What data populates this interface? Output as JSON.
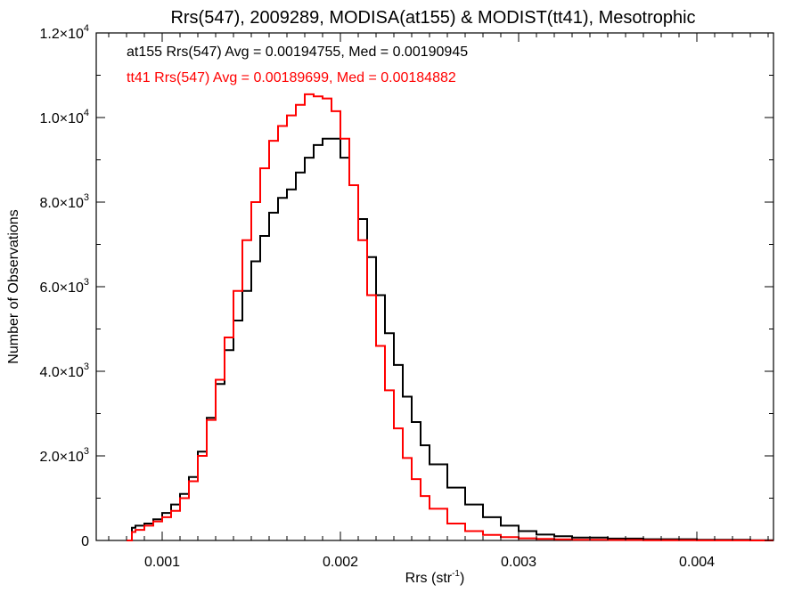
{
  "chart_data": {
    "type": "line",
    "step": true,
    "title": "Rrs(547), 2009289, MODISA(at155) & MODIST(tt41), Mesotrophic",
    "xlabel_base": "Rrs (str",
    "xlabel_sup": "-1",
    "xlabel_close": ")",
    "ylabel": "Number of Observations",
    "xlim": [
      0.00063,
      0.00443
    ],
    "ylim": [
      0,
      12000
    ],
    "grid": false,
    "x_ticks": [
      {
        "value": 0.001,
        "label": "0.001"
      },
      {
        "value": 0.002,
        "label": "0.002"
      },
      {
        "value": 0.003,
        "label": "0.003"
      },
      {
        "value": 0.004,
        "label": "0.004"
      }
    ],
    "y_ticks": [
      {
        "value": 0,
        "mant": "0",
        "exp": ""
      },
      {
        "value": 2000,
        "mant": "2.0×10",
        "exp": "3"
      },
      {
        "value": 4000,
        "mant": "4.0×10",
        "exp": "3"
      },
      {
        "value": 6000,
        "mant": "6.0×10",
        "exp": "3"
      },
      {
        "value": 8000,
        "mant": "8.0×10",
        "exp": "3"
      },
      {
        "value": 10000,
        "mant": "1.0×10",
        "exp": "4"
      },
      {
        "value": 12000,
        "mant": "1.2×10",
        "exp": "4"
      }
    ],
    "annotations": [
      {
        "text": "at155 Rrs(547) Avg = 0.00194755, Med = 0.00190945",
        "color": "#000000"
      },
      {
        "text": "tt41 Rrs(547) Avg = 0.00189699, Med = 0.00184882",
        "color": "#ff0000"
      }
    ],
    "series": [
      {
        "color": "#000000",
        "x": [
          0.0008,
          0.00083,
          0.00085,
          0.0009,
          0.00095,
          0.001,
          0.00105,
          0.0011,
          0.00115,
          0.0012,
          0.00125,
          0.0013,
          0.00135,
          0.0014,
          0.00145,
          0.0015,
          0.00155,
          0.0016,
          0.00165,
          0.0017,
          0.00175,
          0.0018,
          0.00185,
          0.0019,
          0.00195,
          0.002,
          0.00205,
          0.0021,
          0.00215,
          0.0022,
          0.00225,
          0.0023,
          0.00235,
          0.0024,
          0.00245,
          0.0025,
          0.0026,
          0.0027,
          0.0028,
          0.0029,
          0.003,
          0.0031,
          0.0032,
          0.0033,
          0.0035,
          0.0037,
          0.004,
          0.0043
        ],
        "y": [
          0,
          300,
          350,
          400,
          500,
          650,
          850,
          1100,
          1500,
          2100,
          2900,
          3700,
          4500,
          5200,
          5900,
          6600,
          7200,
          7750,
          8100,
          8300,
          8700,
          9050,
          9350,
          9500,
          9500,
          9050,
          8400,
          7600,
          6700,
          5800,
          4900,
          4150,
          3400,
          2800,
          2250,
          1800,
          1250,
          850,
          550,
          350,
          220,
          140,
          100,
          70,
          45,
          30,
          15,
          5
        ]
      },
      {
        "color": "#ff0000",
        "x": [
          0.0008,
          0.00083,
          0.00085,
          0.0009,
          0.00095,
          0.001,
          0.00105,
          0.0011,
          0.00115,
          0.0012,
          0.00125,
          0.0013,
          0.00135,
          0.0014,
          0.00145,
          0.0015,
          0.00155,
          0.0016,
          0.00165,
          0.0017,
          0.00175,
          0.0018,
          0.00185,
          0.0019,
          0.00195,
          0.002,
          0.00205,
          0.0021,
          0.00215,
          0.0022,
          0.00225,
          0.0023,
          0.00235,
          0.0024,
          0.00245,
          0.0025,
          0.0026,
          0.0027,
          0.0028,
          0.0029,
          0.003,
          0.0031,
          0.0032,
          0.0033,
          0.0035,
          0.0037,
          0.004,
          0.0043
        ],
        "y": [
          0,
          200,
          250,
          350,
          450,
          550,
          700,
          1000,
          1400,
          2000,
          2850,
          3800,
          4800,
          5900,
          7100,
          8000,
          8800,
          9450,
          9800,
          10050,
          10300,
          10550,
          10500,
          10450,
          10150,
          9500,
          8400,
          7100,
          5800,
          4600,
          3550,
          2650,
          1950,
          1450,
          1050,
          750,
          400,
          220,
          130,
          80,
          50,
          35,
          25,
          15,
          10,
          5,
          2,
          0
        ]
      }
    ]
  }
}
